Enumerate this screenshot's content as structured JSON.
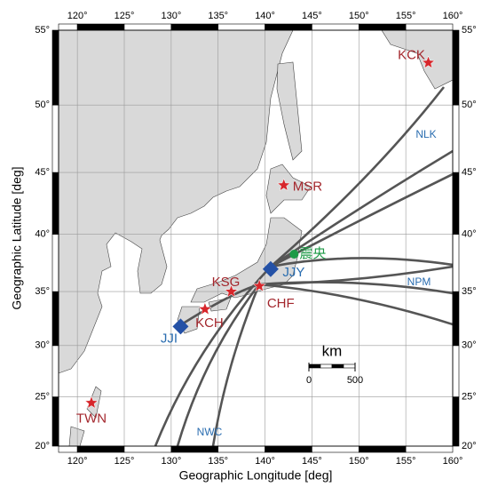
{
  "map": {
    "x_label": "Geographic Longitude [deg]",
    "y_label": "Geographic Latitude [deg]",
    "xlim": [
      118,
      160
    ],
    "ylim": [
      20,
      55
    ],
    "xticks": [
      {
        "value": 120,
        "label": "120°"
      },
      {
        "value": 125,
        "label": "125°"
      },
      {
        "value": 130,
        "label": "130°"
      },
      {
        "value": 135,
        "label": "135°"
      },
      {
        "value": 140,
        "label": "140°"
      },
      {
        "value": 145,
        "label": "145°"
      },
      {
        "value": 150,
        "label": "150°"
      },
      {
        "value": 155,
        "label": "155°"
      },
      {
        "value": 160,
        "label": "160°"
      }
    ],
    "yticks": [
      {
        "value": 20,
        "label": "20°"
      },
      {
        "value": 25,
        "label": "25°"
      },
      {
        "value": 30,
        "label": "30°"
      },
      {
        "value": 35,
        "label": "35°"
      },
      {
        "value": 40,
        "label": "40°"
      },
      {
        "value": 45,
        "label": "45°"
      },
      {
        "value": 50,
        "label": "50°"
      },
      {
        "value": 55,
        "label": "55°"
      }
    ],
    "grid": true,
    "stations": [
      {
        "label": "KCK",
        "kind": "star",
        "lon": 157.4,
        "lat": 52.9,
        "color": "#d7262b",
        "label_color": "#a3262c"
      },
      {
        "label": "MSR",
        "kind": "star",
        "lon": 142.0,
        "lat": 44.0,
        "color": "#d7262b",
        "label_color": "#a3262c"
      },
      {
        "label": "KSG",
        "kind": "star",
        "lon": 136.4,
        "lat": 35.0,
        "color": "#d7262b",
        "label_color": "#a3262c"
      },
      {
        "label": "KCH",
        "kind": "star",
        "lon": 133.6,
        "lat": 33.4,
        "color": "#d7262b",
        "label_color": "#a3262c"
      },
      {
        "label": "CHF",
        "kind": "star",
        "lon": 139.4,
        "lat": 35.5,
        "color": "#d7262b",
        "label_color": "#a3262c"
      },
      {
        "label": "TWN",
        "kind": "star",
        "lon": 121.5,
        "lat": 24.4,
        "color": "#d7262b",
        "label_color": "#a3262c"
      },
      {
        "label": "JJY",
        "kind": "diamond",
        "lon": 140.6,
        "lat": 37.0,
        "color": "#2451a6",
        "label_color": "#2a6db0"
      },
      {
        "label": "JJI",
        "kind": "diamond",
        "lon": 131.0,
        "lat": 31.8,
        "color": "#2451a6",
        "label_color": "#2a6db0"
      },
      {
        "label": "震央",
        "kind": "circle",
        "lon": 143.1,
        "lat": 38.3,
        "color": "#1e9a47",
        "label_color": "#1e9a47"
      }
    ],
    "transmitters": [
      {
        "label": "NLK"
      },
      {
        "label": "NPM"
      },
      {
        "label": "NWC"
      }
    ],
    "scale_bar": {
      "title": "km",
      "ticks": [
        0,
        500
      ]
    }
  }
}
